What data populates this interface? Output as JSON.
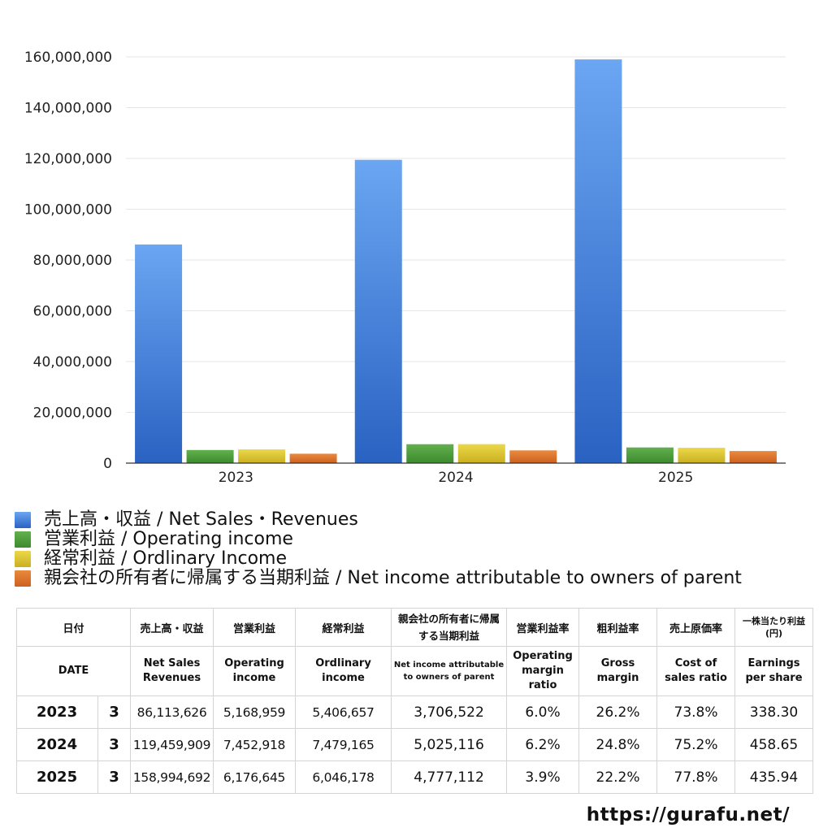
{
  "chart_data": {
    "type": "bar",
    "categories": [
      "2023",
      "2024",
      "2025"
    ],
    "series": [
      {
        "name": "売上高・収益 / Net Sales・Revenues",
        "color": "#3f7fdd",
        "values": [
          86113626,
          119459909,
          158994692
        ]
      },
      {
        "name": "営業利益 / Operating income",
        "color": "#4e9a3c",
        "values": [
          5168959,
          7452918,
          6176645
        ]
      },
      {
        "name": "経常利益 / Ordlinary Income",
        "color": "#d8c232",
        "values": [
          5406657,
          7479165,
          6046178
        ]
      },
      {
        "name": "親会社の所有者に帰属する当期利益 / Net income attributable to owners of parent",
        "color": "#d9702b",
        "values": [
          3706522,
          5025116,
          4777112
        ]
      }
    ],
    "ylim": [
      0,
      160000000
    ],
    "yticks": [
      "0",
      "20,000,000",
      "40,000,000",
      "60,000,000",
      "80,000,000",
      "100,000,000",
      "120,000,000",
      "140,000,000",
      "160,000,000"
    ],
    "title": "",
    "xlabel": "",
    "ylabel": "",
    "legend_position": "bottom-left"
  },
  "table": {
    "header_jp": [
      "日付",
      "売上高・収益",
      "営業利益",
      "経常利益",
      "親会社の所有者に帰属する当期利益",
      "営業利益率",
      "粗利益率",
      "売上原価率",
      "一株当たり利益(円)"
    ],
    "header_en": [
      "DATE",
      "Net Sales Revenues",
      "Operating income",
      "Ordlinary income",
      "Net income attributable to owners of parent",
      "Operating margin ratio",
      "Gross margin",
      "Cost of sales ratio",
      "Earnings per share"
    ],
    "rows": [
      {
        "year": "2023",
        "month": "3",
        "sales": "86,113,626",
        "op": "5,168,959",
        "ord": "5,406,657",
        "net": "3,706,522",
        "opm": "6.0%",
        "gm": "26.2%",
        "cos": "73.8%",
        "eps": "338.30"
      },
      {
        "year": "2024",
        "month": "3",
        "sales": "119,459,909",
        "op": "7,452,918",
        "ord": "7,479,165",
        "net": "5,025,116",
        "opm": "6.2%",
        "gm": "24.8%",
        "cos": "75.2%",
        "eps": "458.65"
      },
      {
        "year": "2025",
        "month": "3",
        "sales": "158,994,692",
        "op": "6,176,645",
        "ord": "6,046,178",
        "net": "4,777,112",
        "opm": "3.9%",
        "gm": "22.2%",
        "cos": "77.8%",
        "eps": "435.94"
      }
    ]
  },
  "site_url": "https://gurafu.net/"
}
